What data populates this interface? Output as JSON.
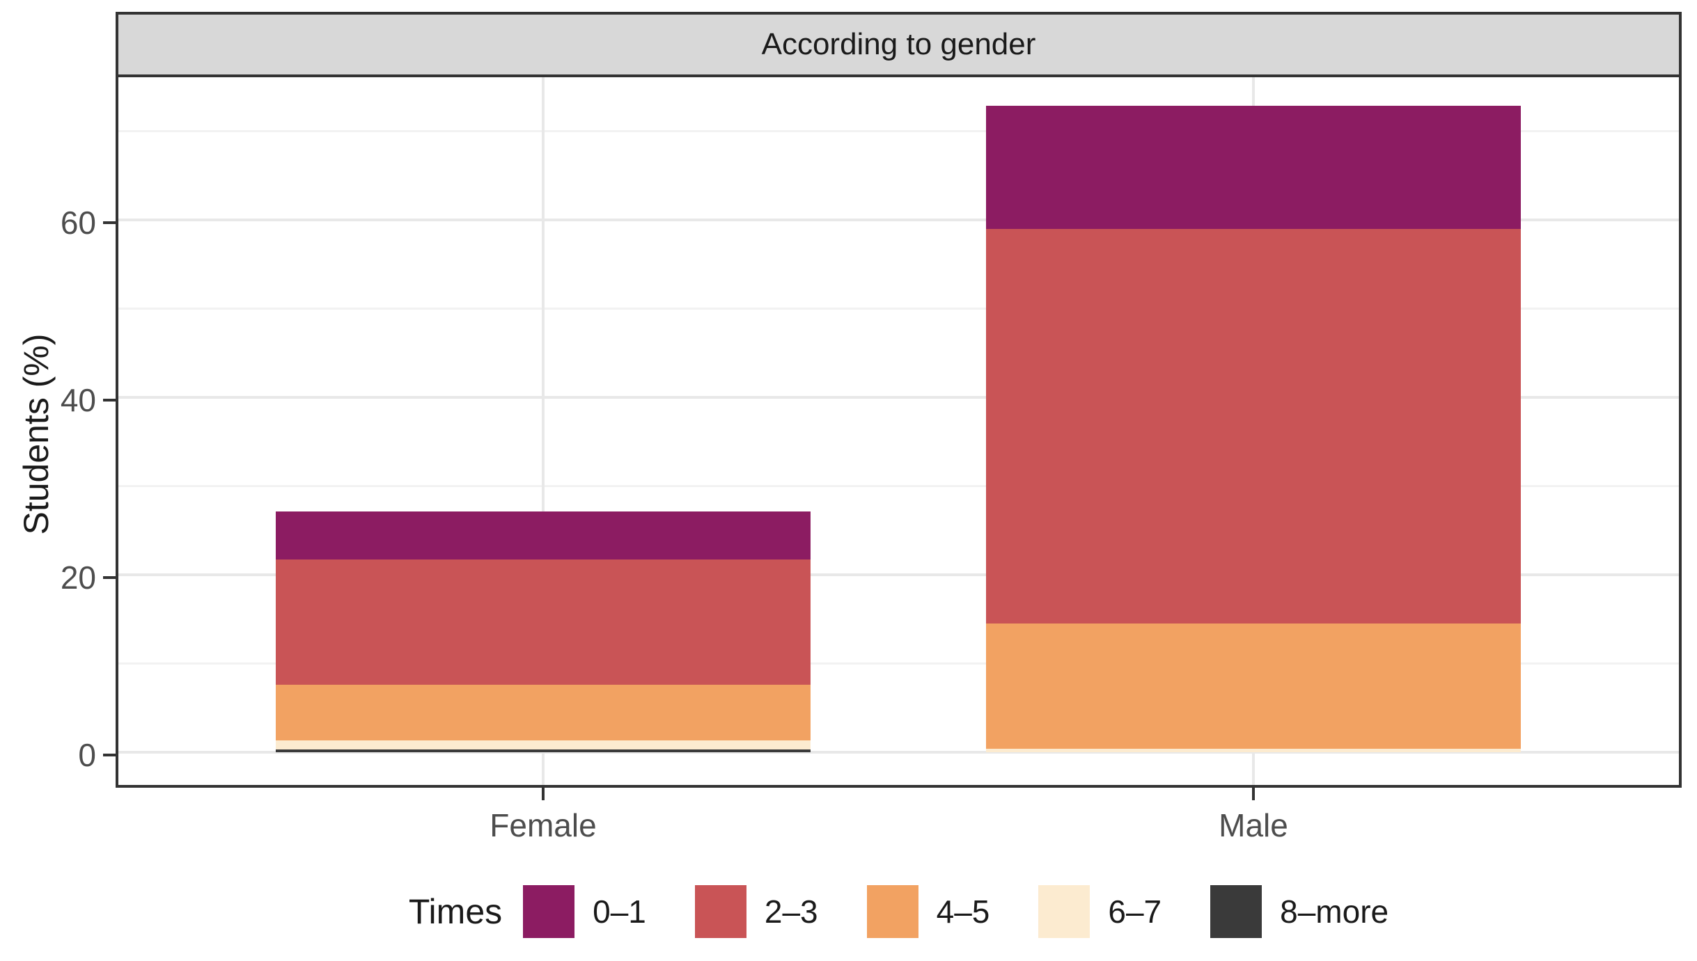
{
  "facet": {
    "strip_title": "According to gender"
  },
  "chart_data": {
    "type": "bar",
    "stacked": true,
    "orientation": "vertical",
    "title": "According to gender",
    "xlabel": "",
    "ylabel": "Students (%)",
    "categories": [
      "Female",
      "Male"
    ],
    "series": [
      {
        "name": "0–1",
        "color": "#8C1C62",
        "values": [
          5.4,
          13.9
        ]
      },
      {
        "name": "2–3",
        "color": "#C95456",
        "values": [
          14.1,
          44.5
        ]
      },
      {
        "name": "4–5",
        "color": "#F2A262",
        "values": [
          6.3,
          14.1
        ]
      },
      {
        "name": "6–7",
        "color": "#FCEBD0",
        "values": [
          1.0,
          0.4
        ]
      },
      {
        "name": "8–more",
        "color": "#3A3A3A",
        "values": [
          0.3,
          0.0
        ]
      }
    ],
    "stack_order_note": "first series on top of stack, last series at bottom",
    "totals": [
      27.1,
      72.9
    ],
    "y_ticks": [
      0,
      20,
      40,
      60
    ],
    "y_minor_ticks": [
      10,
      30,
      50,
      70
    ],
    "ylim": [
      -3.7,
      76.5
    ],
    "grid": true,
    "legend_title": "Times",
    "legend_position": "bottom"
  },
  "colors": {
    "strip_background": "#D8D8D8",
    "panel_border": "#333333",
    "grid_major": "#E8E8E8",
    "grid_minor": "#F2F2F2",
    "tick_text": "#4D4D4D",
    "title_text": "#1A1A1A"
  }
}
